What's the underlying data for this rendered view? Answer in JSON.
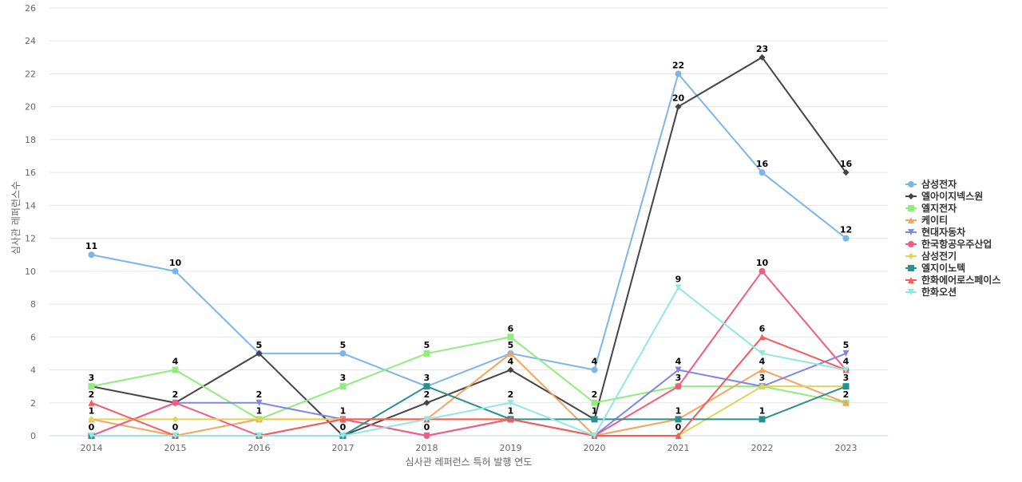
{
  "chart_data": {
    "type": "line",
    "xlabel": "심사관 레퍼런스 특허 발행 연도",
    "ylabel": "심사관 레퍼런스수",
    "ylim": [
      0,
      26
    ],
    "y_ticks": [
      0,
      2,
      4,
      6,
      8,
      10,
      12,
      14,
      16,
      18,
      20,
      22,
      24,
      26
    ],
    "grid": true,
    "legend_position": "right",
    "x": [
      2014,
      2015,
      2016,
      2017,
      2018,
      2019,
      2020,
      2021,
      2022,
      2023
    ],
    "series": [
      {
        "name": "삼성전자",
        "color": "#7cb5ec",
        "marker": "circle",
        "values": [
          11,
          10,
          5,
          5,
          3,
          5,
          4,
          22,
          16,
          12
        ],
        "labeled": [
          0,
          1,
          2,
          3,
          6,
          7,
          8,
          9
        ]
      },
      {
        "name": "엘아이지넥스원",
        "color": "#434348",
        "marker": "diamond",
        "values": [
          3,
          2,
          5,
          0,
          2,
          4,
          1,
          20,
          23,
          16
        ],
        "labeled": [
          0,
          2,
          4,
          5,
          7,
          8,
          9
        ]
      },
      {
        "name": "엘지전자",
        "color": "#90ed7d",
        "marker": "square",
        "values": [
          3,
          4,
          1,
          3,
          5,
          6,
          2,
          3,
          3,
          2
        ],
        "labeled": [
          1,
          3,
          4,
          5,
          6,
          7,
          8
        ]
      },
      {
        "name": "케이티",
        "color": "#f7a35c",
        "marker": "triangle",
        "values": [
          1,
          0,
          1,
          1,
          1,
          5,
          0,
          1,
          4,
          2
        ],
        "labeled": [
          0,
          1,
          2,
          3,
          5,
          7,
          8,
          9
        ]
      },
      {
        "name": "현대자동차",
        "color": "#8085e9",
        "marker": "triangle-down",
        "values": [
          0,
          2,
          2,
          1,
          0,
          1,
          0,
          4,
          3,
          5
        ],
        "labeled": [
          2,
          7,
          9
        ]
      },
      {
        "name": "한국항공우주산업",
        "color": "#f15c80",
        "marker": "circle",
        "values": [
          0,
          2,
          0,
          1,
          0,
          1,
          0,
          3,
          10,
          4
        ],
        "labeled": [
          1,
          4,
          8,
          9
        ]
      },
      {
        "name": "삼성전기",
        "color": "#e4d354",
        "marker": "diamond",
        "values": [
          1,
          1,
          1,
          1,
          1,
          1,
          0,
          0,
          3,
          3
        ],
        "labeled": []
      },
      {
        "name": "엘지이노텍",
        "color": "#2b908f",
        "marker": "square",
        "values": [
          0,
          0,
          0,
          0,
          3,
          1,
          1,
          1,
          1,
          3
        ],
        "labeled": [
          0,
          4,
          5,
          6,
          8,
          9
        ]
      },
      {
        "name": "한화에어로스페이스",
        "color": "#f45b5b",
        "marker": "triangle",
        "values": [
          2,
          0,
          0,
          1,
          1,
          1,
          0,
          0,
          6,
          4
        ],
        "labeled": [
          0,
          7,
          8
        ]
      },
      {
        "name": "한화오션",
        "color": "#91e8e1",
        "marker": "triangle-down",
        "values": [
          0,
          0,
          0,
          0,
          1,
          2,
          0,
          9,
          5,
          4
        ],
        "labeled": [
          3,
          5,
          7
        ]
      }
    ]
  }
}
